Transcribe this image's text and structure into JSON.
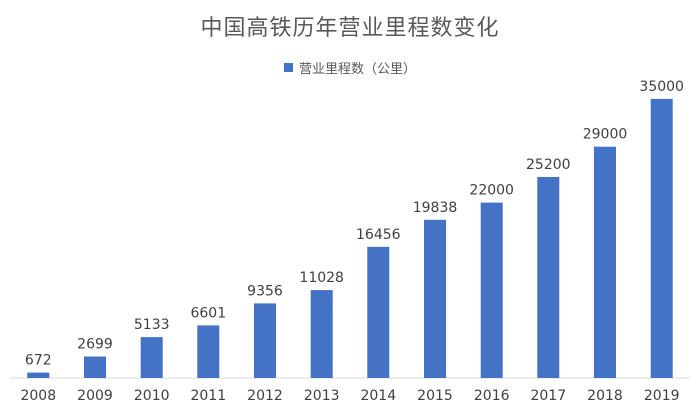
{
  "chart_data": {
    "type": "bar",
    "title": "中国高铁历年营业里程数变化",
    "categories": [
      "2008",
      "2009",
      "2010",
      "2011",
      "2012",
      "2013",
      "2014",
      "2015",
      "2016",
      "2017",
      "2018",
      "2019"
    ],
    "series": [
      {
        "name": "营业里程数（公里）",
        "values": [
          672,
          2699,
          5133,
          6601,
          9356,
          11028,
          16456,
          19838,
          22000,
          25200,
          29000,
          35000
        ]
      }
    ],
    "ylim": [
      0,
      40000
    ],
    "grid": false,
    "legend": "top",
    "bar_color": "#4472c4",
    "label_color": "#404040",
    "axis_color": "#d9d9d9"
  }
}
